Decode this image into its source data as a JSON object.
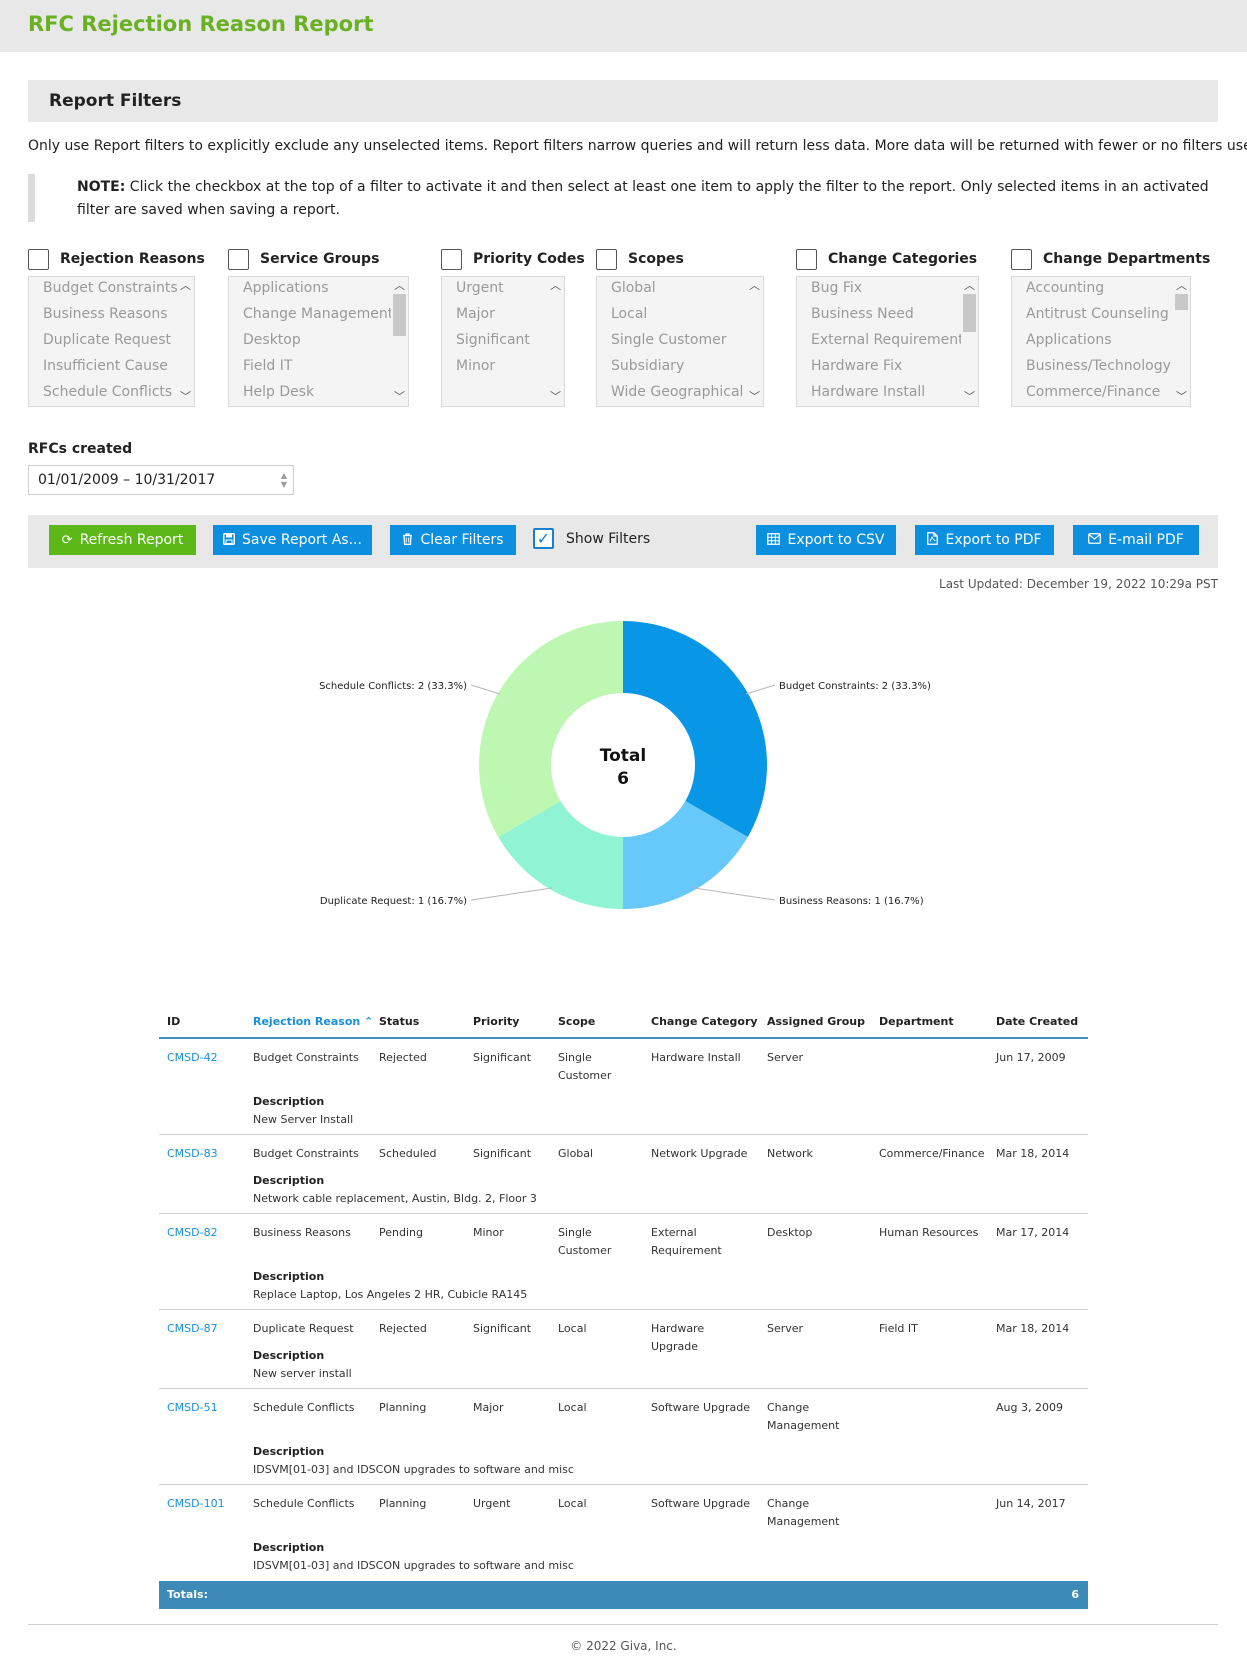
{
  "page": {
    "title": "RFC Rejection Reason Report",
    "filters_heading": "Report Filters",
    "intro": "Only use Report filters to explicitly exclude any unselected items. Report filters narrow queries and will return less data. More data will be returned with fewer or no filters used.",
    "note_label": "NOTE:",
    "note_text": " Click the checkbox at the top of a filter to activate it and then select at least one item to apply the filter to the report. Only selected items in an activated filter are saved when saving a report.",
    "footer": "© 2022 Giva, Inc."
  },
  "filters": [
    {
      "name": "Rejection Reasons",
      "items": [
        "Budget Constraints",
        "Business Reasons",
        "Duplicate Request",
        "Insufficient Cause",
        "Schedule Conflicts"
      ]
    },
    {
      "name": "Service Groups",
      "items": [
        "Applications",
        "Change Management",
        "Desktop",
        "Field IT",
        "Help Desk"
      ]
    },
    {
      "name": "Priority Codes",
      "items": [
        "Urgent",
        "Major",
        "Significant",
        "Minor"
      ]
    },
    {
      "name": "Scopes",
      "items": [
        "Global",
        "Local",
        "Single Customer",
        "Subsidiary",
        "Wide Geographical"
      ]
    },
    {
      "name": "Change Categories",
      "items": [
        "Bug Fix",
        "Business Need",
        "External Requirement",
        "Hardware Fix",
        "Hardware Install"
      ]
    },
    {
      "name": "Change Departments",
      "items": [
        "Accounting",
        "Antitrust Counseling",
        "Applications",
        "Business/Technology",
        "Commerce/Finance"
      ]
    }
  ],
  "rfcs_created": {
    "label": "RFCs created",
    "value": "01/01/2009 – 10/31/2017"
  },
  "toolbar": {
    "refresh": "Refresh Report",
    "save": "Save Report As...",
    "clear": "Clear Filters",
    "show_filters": "Show Filters",
    "export_csv": "Export to CSV",
    "export_pdf": "Export to PDF",
    "email_pdf": "E-mail PDF"
  },
  "last_updated": "Last Updated: December 19, 2022 10:29a PST",
  "chart_data": {
    "type": "pie",
    "center_label": "Total",
    "center_value": "6",
    "slices": [
      {
        "label": "Budget Constraints",
        "value": 2,
        "percent": "33.3%",
        "color": "#0897e6",
        "text": "Budget Constraints: 2 (33.3%)"
      },
      {
        "label": "Business Reasons",
        "value": 1,
        "percent": "16.7%",
        "color": "#66c9fa",
        "text": "Business Reasons: 1 (16.7%)"
      },
      {
        "label": "Duplicate Request",
        "value": 1,
        "percent": "16.7%",
        "color": "#90f3d4",
        "text": "Duplicate Request: 1 (16.7%)"
      },
      {
        "label": "Schedule Conflicts",
        "value": 2,
        "percent": "33.3%",
        "color": "#bef7b2",
        "text": "Schedule Conflicts: 2 (33.3%)"
      }
    ]
  },
  "table": {
    "headers": [
      "ID",
      "Rejection Reason",
      "Status",
      "Priority",
      "Scope",
      "Change Category",
      "Assigned Group",
      "Department",
      "Date Created"
    ],
    "description_label": "Description",
    "rows": [
      {
        "id": "CMSD-42",
        "reason": "Budget Constraints",
        "status": "Rejected",
        "priority": "Significant",
        "scope": "Single Customer",
        "category": "Hardware Install",
        "group": "Server",
        "department": "",
        "date": "Jun 17, 2009",
        "description": "New Server Install"
      },
      {
        "id": "CMSD-83",
        "reason": "Budget Constraints",
        "status": "Scheduled",
        "priority": "Significant",
        "scope": "Global",
        "category": "Network Upgrade",
        "group": "Network",
        "department": "Commerce/Finance",
        "date": "Mar 18, 2014",
        "description": "Network cable replacement, Austin, Bldg. 2, Floor 3"
      },
      {
        "id": "CMSD-82",
        "reason": "Business Reasons",
        "status": "Pending",
        "priority": "Minor",
        "scope": "Single Customer",
        "category": "External Requirement",
        "group": "Desktop",
        "department": "Human Resources",
        "date": "Mar 17, 2014",
        "description": "Replace Laptop, Los Angeles 2 HR, Cubicle RA145"
      },
      {
        "id": "CMSD-87",
        "reason": "Duplicate Request",
        "status": "Rejected",
        "priority": "Significant",
        "scope": "Local",
        "category": "Hardware Upgrade",
        "group": "Server",
        "department": "Field IT",
        "date": "Mar 18, 2014",
        "description": "New server install"
      },
      {
        "id": "CMSD-51",
        "reason": "Schedule Conflicts",
        "status": "Planning",
        "priority": "Major",
        "scope": "Local",
        "category": "Software Upgrade",
        "group": "Change Management",
        "department": "",
        "date": "Aug 3, 2009",
        "description": "IDSVM[01-03] and IDSCON upgrades to software and misc"
      },
      {
        "id": "CMSD-101",
        "reason": "Schedule Conflicts",
        "status": "Planning",
        "priority": "Urgent",
        "scope": "Local",
        "category": "Software Upgrade",
        "group": "Change Management",
        "department": "",
        "date": "Jun 14, 2017",
        "description": "IDSVM[01-03] and IDSCON upgrades to software and misc"
      }
    ],
    "totals_label": "Totals:",
    "totals_value": "6"
  }
}
